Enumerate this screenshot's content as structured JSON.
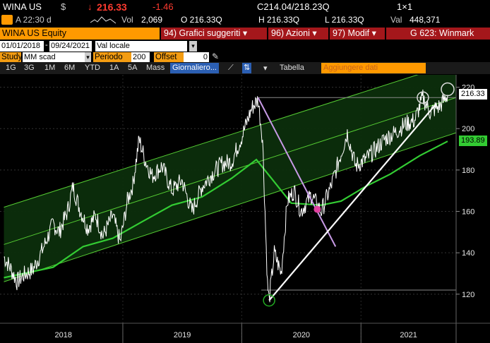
{
  "quote": {
    "ticker": "WINA US",
    "currency": "$",
    "arrow": "↓",
    "last": "216.33",
    "change": "-1.46",
    "range": "C214.04/218.23Q",
    "size": "1×1",
    "time": "A 22:30 d",
    "vol_label": "Vol",
    "vol": "2,069",
    "open": "O 216.33Q",
    "high": "H 216.33Q",
    "low": "L 216.33Q",
    "val_label": "Val",
    "val": "448,371"
  },
  "menu": {
    "security": "WINA US Equity",
    "suggested": "94) Grafici suggeriti",
    "actions": "96) Azioni",
    "modify": "97) Modif",
    "group": "G 623: Winmark"
  },
  "params": {
    "start_date": "01/01/2018",
    "end_date": "09/24/2021",
    "currency_select": "Val locale",
    "study_label": "Study",
    "study_value": "MM scad",
    "period_label": "Periodo",
    "period_value": "200",
    "offset_label": "Offset",
    "offset_value": "0"
  },
  "toolbar": {
    "ranges": [
      "1G",
      "3G",
      "1M",
      "6M",
      "YTD",
      "1A",
      "5A",
      "Mass"
    ],
    "frequency": "Giornaliero",
    "table": "Tabella",
    "add_data_placeholder": "Aggiungere dati"
  },
  "colors": {
    "price": "#ffffff",
    "ma": "#33cc33",
    "channel": "#55cc33",
    "trendline_down": "#c89ae6",
    "trendline_up": "#ffffff",
    "orange": "#ff9900"
  },
  "chart_data": {
    "type": "line",
    "series": [
      {
        "values_desc": "price"
      },
      {
        "values_desc": "200-day moving average"
      }
    ],
    "x_ticks": [
      "2018",
      "2019",
      "2020",
      "2021"
    ],
    "y_ticks": [
      120,
      140,
      160,
      180,
      200,
      220
    ],
    "ylim": [
      108,
      226
    ],
    "last_price_tag": "216.33",
    "ma_tag": "193.89",
    "price_points": [
      [
        "2018-01-01",
        138
      ],
      [
        "2018-01-20",
        133
      ],
      [
        "2018-02-10",
        126
      ],
      [
        "2018-03-01",
        129
      ],
      [
        "2018-04-01",
        132
      ],
      [
        "2018-05-01",
        142
      ],
      [
        "2018-06-01",
        154
      ],
      [
        "2018-06-20",
        150
      ],
      [
        "2018-07-15",
        160
      ],
      [
        "2018-08-01",
        172
      ],
      [
        "2018-08-20",
        162
      ],
      [
        "2018-09-15",
        152
      ],
      [
        "2018-10-10",
        158
      ],
      [
        "2018-11-01",
        148
      ],
      [
        "2018-12-01",
        158
      ],
      [
        "2018-12-24",
        145
      ],
      [
        "2019-01-15",
        165
      ],
      [
        "2019-02-01",
        173
      ],
      [
        "2019-02-20",
        195
      ],
      [
        "2019-03-10",
        185
      ],
      [
        "2019-04-01",
        177
      ],
      [
        "2019-05-01",
        182
      ],
      [
        "2019-06-01",
        170
      ],
      [
        "2019-07-01",
        175
      ],
      [
        "2019-08-01",
        160
      ],
      [
        "2019-09-01",
        172
      ],
      [
        "2019-10-01",
        178
      ],
      [
        "2019-11-01",
        183
      ],
      [
        "2019-12-01",
        184
      ],
      [
        "2020-01-01",
        196
      ],
      [
        "2020-02-01",
        210
      ],
      [
        "2020-02-20",
        214
      ],
      [
        "2020-03-05",
        195
      ],
      [
        "2020-03-20",
        125
      ],
      [
        "2020-03-25",
        117
      ],
      [
        "2020-04-10",
        140
      ],
      [
        "2020-05-01",
        130
      ],
      [
        "2020-05-20",
        165
      ],
      [
        "2020-06-10",
        170
      ],
      [
        "2020-07-01",
        160
      ],
      [
        "2020-08-01",
        168
      ],
      [
        "2020-09-01",
        160
      ],
      [
        "2020-10-01",
        172
      ],
      [
        "2020-11-01",
        188
      ],
      [
        "2020-11-20",
        198
      ],
      [
        "2020-12-15",
        182
      ],
      [
        "2021-01-15",
        185
      ],
      [
        "2021-02-15",
        190
      ],
      [
        "2021-03-15",
        195
      ],
      [
        "2021-04-15",
        198
      ],
      [
        "2021-05-15",
        202
      ],
      [
        "2021-06-15",
        204
      ],
      [
        "2021-07-10",
        215
      ],
      [
        "2021-08-01",
        208
      ],
      [
        "2021-09-01",
        211
      ],
      [
        "2021-09-24",
        216.33
      ]
    ],
    "ma_points": [
      [
        "2018-01-01",
        128
      ],
      [
        "2018-06-01",
        133
      ],
      [
        "2018-09-01",
        143
      ],
      [
        "2018-12-01",
        147
      ],
      [
        "2019-03-01",
        155
      ],
      [
        "2019-06-01",
        163
      ],
      [
        "2019-09-01",
        167
      ],
      [
        "2019-12-01",
        176
      ],
      [
        "2020-02-15",
        185
      ],
      [
        "2020-04-01",
        176
      ],
      [
        "2020-06-01",
        164
      ],
      [
        "2020-09-01",
        163
      ],
      [
        "2020-11-01",
        165
      ],
      [
        "2021-01-15",
        172
      ],
      [
        "2021-04-01",
        178
      ],
      [
        "2021-07-01",
        187
      ],
      [
        "2021-09-24",
        193.89
      ]
    ]
  }
}
